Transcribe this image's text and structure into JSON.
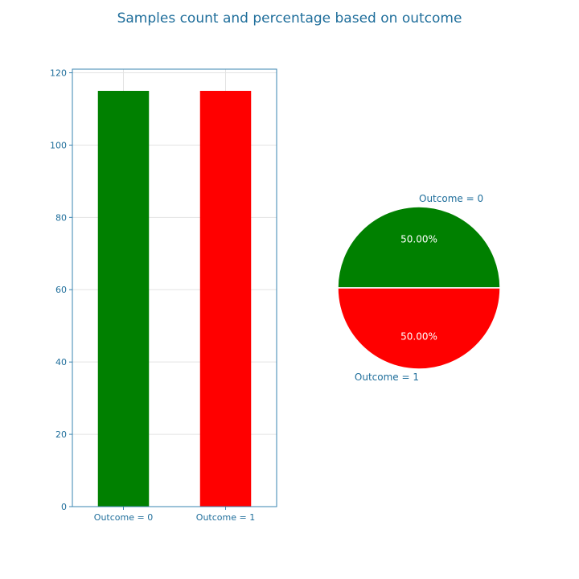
{
  "title": "Samples count and percentage based on outcome",
  "colors": {
    "text": "#1f6e9b",
    "axis": "#3a84b0",
    "grid": "#e3e3e3",
    "green": "#008000",
    "red": "#ff0000",
    "white": "#ffffff"
  },
  "chart_data": [
    {
      "type": "bar",
      "categories": [
        "Outcome = 0",
        "Outcome = 1"
      ],
      "values": [
        115,
        115
      ],
      "colors": [
        "#008000",
        "#ff0000"
      ],
      "ylim": [
        0,
        121
      ],
      "yticks": [
        0,
        20,
        40,
        60,
        80,
        100,
        120
      ],
      "grid": true
    },
    {
      "type": "pie",
      "labels": [
        "Outcome = 0",
        "Outcome = 1"
      ],
      "values": [
        50,
        50
      ],
      "value_labels": [
        "50.00%",
        "50.00%"
      ],
      "colors": [
        "#008000",
        "#ff0000"
      ]
    }
  ]
}
